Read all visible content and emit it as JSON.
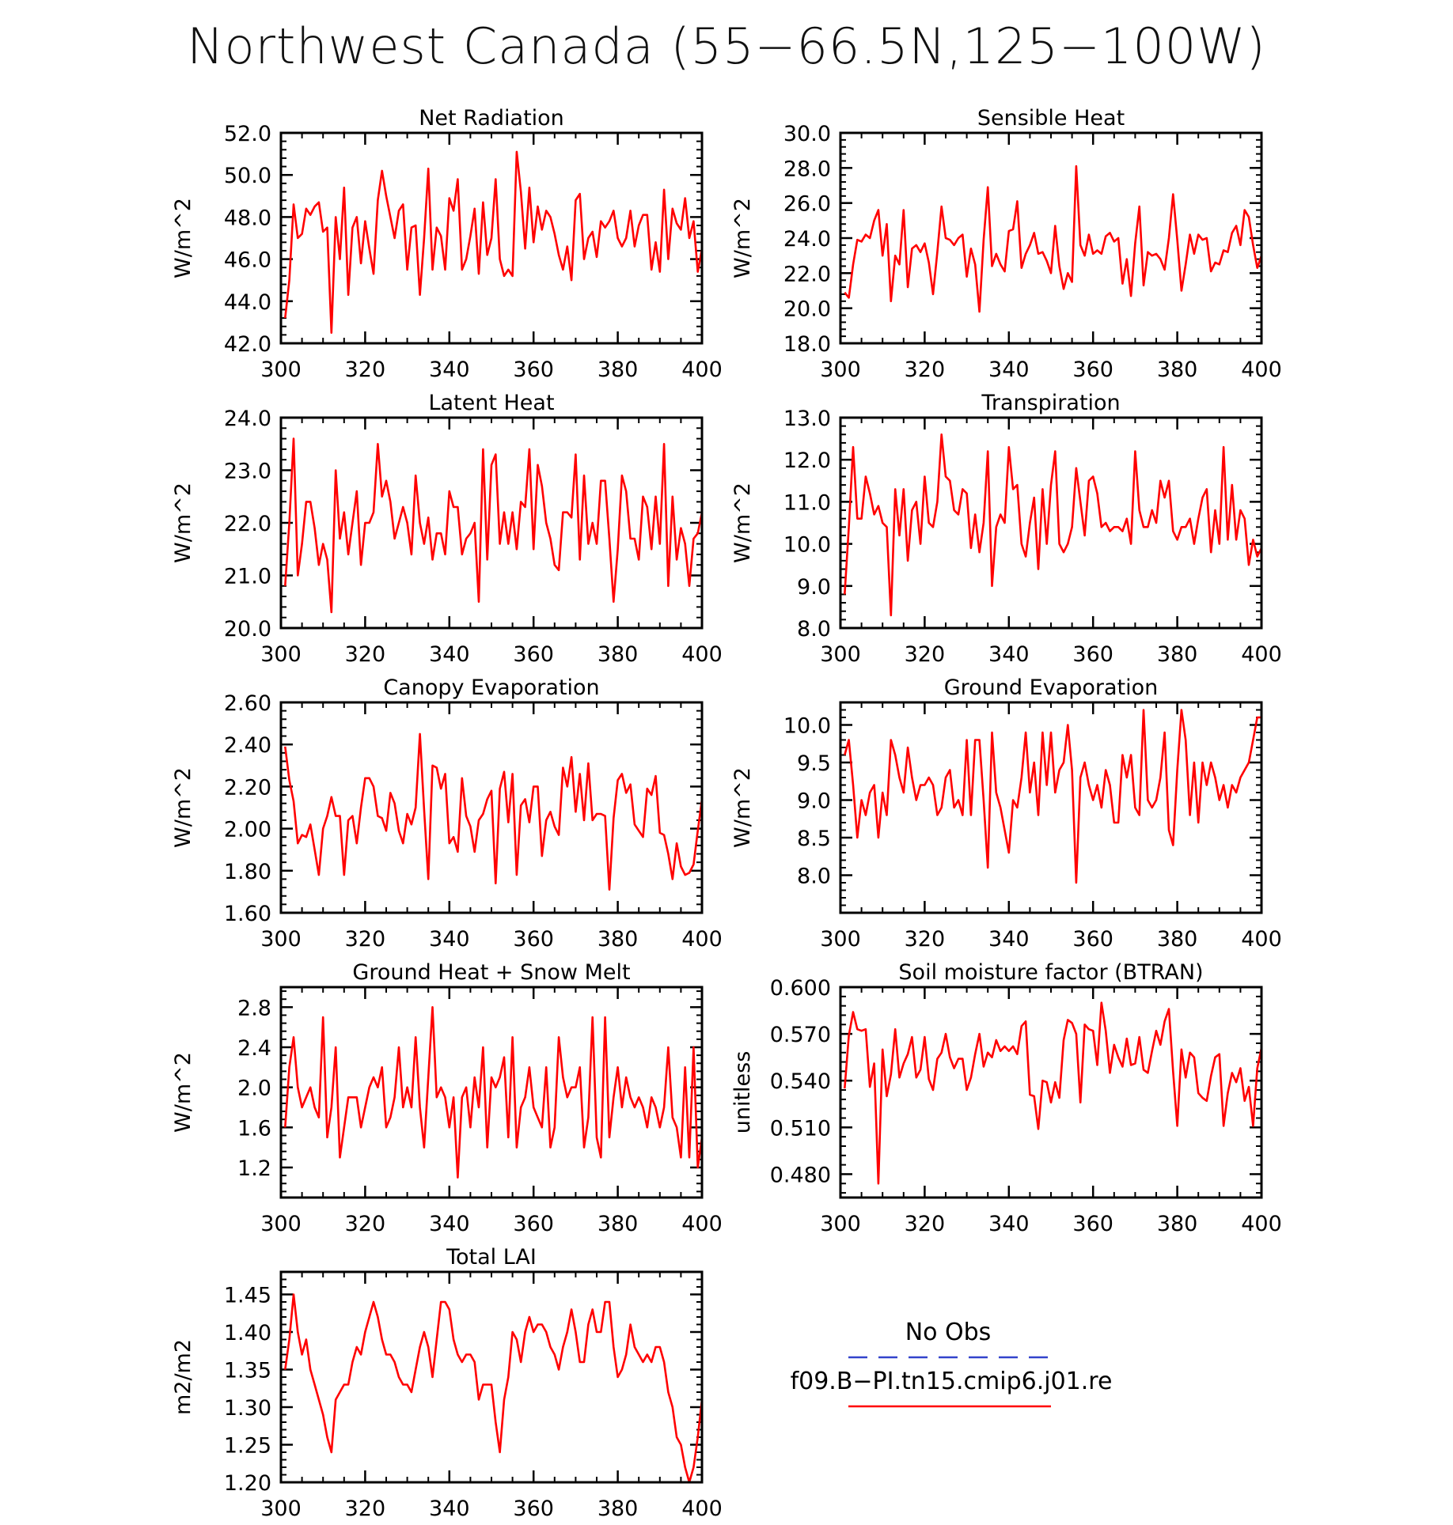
{
  "title": "Northwest Canada (55−66.5N,125−100W)",
  "legend": {
    "obs_label": "No Obs",
    "model_label": "f09.B−PI.tn15.cmip6.j01.re",
    "obs_color": "#3344cc",
    "model_color": "#ff0000"
  },
  "chart_data": [
    {
      "type": "line",
      "title": "Net Radiation",
      "ylabel": "W/m^2",
      "xlim": [
        300,
        400
      ],
      "ylim": [
        42.0,
        52.0
      ],
      "xticks": [
        "300",
        "320",
        "340",
        "360",
        "380",
        "400"
      ],
      "yticks": [
        "42.0",
        "44.0",
        "46.0",
        "48.0",
        "50.0",
        "52.0"
      ],
      "x_start": 301,
      "values": [
        43.2,
        45.0,
        48.6,
        47.0,
        47.2,
        48.4,
        48.1,
        48.5,
        48.7,
        47.3,
        47.5,
        42.5,
        48.0,
        46.0,
        49.4,
        44.3,
        47.5,
        48.0,
        45.8,
        47.8,
        46.5,
        45.3,
        48.8,
        50.2,
        49.0,
        48.0,
        47.0,
        48.3,
        48.6,
        45.5,
        47.5,
        47.6,
        44.3,
        47.0,
        50.3,
        45.5,
        47.5,
        47.1,
        45.5,
        48.9,
        48.3,
        49.8,
        45.5,
        46.0,
        47.1,
        48.4,
        45.3,
        48.7,
        46.2,
        47.0,
        49.8,
        46.0,
        45.2,
        45.5,
        45.2,
        51.1,
        49.2,
        46.5,
        49.4,
        46.8,
        48.5,
        47.4,
        48.3,
        48.0,
        47.2,
        46.2,
        45.5,
        46.6,
        45.0,
        48.8,
        49.1,
        46.0,
        47.0,
        47.3,
        46.1,
        47.8,
        47.5,
        47.8,
        48.3,
        47.0,
        46.6,
        47.0,
        48.3,
        46.6,
        47.6,
        48.1,
        48.1,
        45.5,
        46.8,
        45.4,
        49.3,
        46.0,
        48.4,
        47.7,
        47.4,
        48.9,
        47.0,
        47.8,
        45.4,
        46.5
      ]
    },
    {
      "type": "line",
      "title": "Sensible Heat",
      "ylabel": "W/m^2",
      "xlim": [
        300,
        400
      ],
      "ylim": [
        18.0,
        30.0
      ],
      "xticks": [
        "300",
        "320",
        "340",
        "360",
        "380",
        "400"
      ],
      "yticks": [
        "18.0",
        "20.0",
        "22.0",
        "24.0",
        "26.0",
        "28.0",
        "30.0"
      ],
      "x_start": 301,
      "values": [
        20.9,
        20.6,
        22.5,
        23.9,
        23.8,
        24.2,
        24.0,
        25.0,
        25.6,
        23.0,
        24.8,
        20.4,
        23.0,
        22.5,
        25.6,
        21.2,
        23.4,
        23.6,
        23.2,
        23.7,
        22.6,
        20.8,
        23.2,
        25.8,
        24.0,
        23.9,
        23.6,
        24.0,
        24.2,
        21.8,
        23.4,
        22.5,
        19.8,
        23.9,
        26.9,
        22.4,
        23.1,
        22.5,
        22.1,
        24.4,
        24.5,
        26.1,
        22.3,
        23.1,
        23.6,
        24.3,
        23.1,
        23.2,
        22.7,
        22.0,
        24.7,
        22.4,
        21.1,
        22.0,
        21.5,
        28.1,
        23.6,
        23.0,
        24.2,
        23.1,
        23.3,
        23.1,
        24.1,
        24.3,
        23.8,
        24.0,
        21.4,
        22.8,
        20.7,
        23.7,
        25.8,
        21.3,
        23.2,
        23.0,
        23.1,
        22.8,
        22.2,
        24.0,
        26.5,
        23.9,
        21.0,
        22.5,
        24.2,
        23.1,
        24.2,
        23.9,
        24.0,
        22.1,
        22.6,
        22.5,
        23.3,
        23.2,
        24.3,
        24.7,
        23.6,
        25.6,
        25.2,
        23.6,
        22.3,
        23.0
      ]
    },
    {
      "type": "line",
      "title": "Latent Heat",
      "ylabel": "W/m^2",
      "xlim": [
        300,
        400
      ],
      "ylim": [
        20.0,
        24.0
      ],
      "xticks": [
        "300",
        "320",
        "340",
        "360",
        "380",
        "400"
      ],
      "yticks": [
        "20.0",
        "21.0",
        "22.0",
        "23.0",
        "24.0"
      ],
      "x_start": 301,
      "values": [
        20.8,
        22.0,
        23.6,
        21.0,
        21.6,
        22.4,
        22.4,
        21.9,
        21.2,
        21.6,
        21.3,
        20.3,
        23.0,
        21.7,
        22.2,
        21.4,
        22.0,
        22.6,
        21.2,
        22.0,
        22.0,
        22.2,
        23.5,
        22.5,
        22.8,
        22.4,
        21.7,
        22.0,
        22.3,
        22.0,
        21.4,
        22.9,
        22.0,
        21.6,
        22.1,
        21.3,
        21.8,
        21.8,
        21.4,
        22.6,
        22.3,
        22.3,
        21.4,
        21.7,
        21.8,
        22.0,
        20.5,
        23.4,
        21.3,
        23.1,
        23.3,
        21.6,
        22.2,
        21.6,
        22.2,
        21.5,
        22.4,
        22.3,
        23.4,
        21.5,
        23.1,
        22.7,
        22.0,
        21.7,
        21.2,
        21.1,
        22.2,
        22.2,
        22.1,
        23.3,
        21.3,
        22.9,
        21.6,
        22.0,
        21.6,
        22.8,
        22.8,
        21.7,
        20.5,
        21.5,
        22.9,
        22.6,
        21.7,
        21.7,
        21.3,
        22.5,
        22.3,
        21.5,
        22.5,
        21.6,
        23.5,
        20.8,
        22.5,
        21.3,
        21.9,
        21.6,
        20.8,
        21.7,
        21.8,
        22.2
      ]
    },
    {
      "type": "line",
      "title": "Transpiration",
      "ylabel": "W/m^2",
      "xlim": [
        300,
        400
      ],
      "ylim": [
        8.0,
        13.0
      ],
      "xticks": [
        "300",
        "320",
        "340",
        "360",
        "380",
        "400"
      ],
      "yticks": [
        "8.0",
        "9.0",
        "10.0",
        "11.0",
        "12.0",
        "13.0"
      ],
      "x_start": 301,
      "values": [
        8.8,
        10.4,
        12.3,
        10.6,
        10.6,
        11.6,
        11.2,
        10.7,
        10.9,
        10.5,
        10.4,
        8.3,
        11.3,
        10.2,
        11.3,
        9.6,
        10.8,
        11.0,
        10.0,
        11.6,
        10.5,
        10.4,
        11.0,
        12.6,
        11.6,
        11.5,
        10.8,
        10.7,
        11.3,
        11.2,
        9.9,
        10.7,
        9.8,
        10.5,
        12.2,
        9.0,
        10.4,
        10.7,
        10.5,
        12.3,
        11.3,
        11.4,
        10.0,
        9.7,
        10.5,
        11.1,
        9.4,
        11.3,
        10.0,
        11.4,
        12.2,
        10.0,
        9.8,
        10.0,
        10.4,
        11.8,
        11.0,
        10.2,
        11.5,
        11.6,
        11.2,
        10.4,
        10.5,
        10.3,
        10.4,
        10.4,
        10.3,
        10.6,
        10.0,
        12.2,
        10.8,
        10.4,
        10.4,
        10.8,
        10.5,
        11.5,
        11.1,
        11.5,
        10.3,
        10.1,
        10.4,
        10.4,
        10.6,
        10.0,
        10.6,
        11.1,
        11.3,
        9.8,
        10.8,
        10.0,
        12.3,
        10.1,
        11.4,
        10.1,
        10.8,
        10.6,
        9.5,
        10.1,
        9.7,
        9.9
      ]
    },
    {
      "type": "line",
      "title": "Canopy Evaporation",
      "ylabel": "W/m^2",
      "xlim": [
        300,
        400
      ],
      "ylim": [
        1.6,
        2.6
      ],
      "xticks": [
        "300",
        "320",
        "340",
        "360",
        "380",
        "400"
      ],
      "yticks": [
        "1.60",
        "1.80",
        "2.00",
        "2.20",
        "2.40",
        "2.60"
      ],
      "x_start": 301,
      "values": [
        2.39,
        2.23,
        2.13,
        1.93,
        1.97,
        1.96,
        2.02,
        1.9,
        1.78,
        2.0,
        2.06,
        2.15,
        2.06,
        2.06,
        1.78,
        2.04,
        2.06,
        1.93,
        2.1,
        2.24,
        2.24,
        2.2,
        2.06,
        2.05,
        1.99,
        2.17,
        2.12,
        1.99,
        1.93,
        2.07,
        2.02,
        2.1,
        2.45,
        2.09,
        1.76,
        2.3,
        2.29,
        2.19,
        2.26,
        1.93,
        1.96,
        1.89,
        2.24,
        2.06,
        2.01,
        1.89,
        2.04,
        2.07,
        2.14,
        2.18,
        1.74,
        2.19,
        2.27,
        2.03,
        2.26,
        1.78,
        2.11,
        2.14,
        2.03,
        2.2,
        2.2,
        1.87,
        2.04,
        2.08,
        2.01,
        1.97,
        2.29,
        2.2,
        2.34,
        2.08,
        2.26,
        2.04,
        2.31,
        2.04,
        2.07,
        2.07,
        2.06,
        1.71,
        2.05,
        2.23,
        2.26,
        2.17,
        2.21,
        2.02,
        1.99,
        1.96,
        2.19,
        2.16,
        2.25,
        1.98,
        1.97,
        1.88,
        1.76,
        1.93,
        1.82,
        1.78,
        1.79,
        1.83,
        1.99,
        2.14
      ]
    },
    {
      "type": "line",
      "title": "Ground Evaporation",
      "ylabel": "W/m^2",
      "xlim": [
        300,
        400
      ],
      "ylim": [
        7.5,
        10.3
      ],
      "xticks": [
        "300",
        "320",
        "340",
        "360",
        "380",
        "400"
      ],
      "yticks": [
        "8.0",
        "8.5",
        "9.0",
        "9.5",
        "10.0"
      ],
      "x_start": 301,
      "values": [
        9.6,
        9.8,
        9.2,
        8.5,
        9.0,
        8.8,
        9.1,
        9.2,
        8.5,
        9.1,
        8.8,
        9.8,
        9.6,
        9.3,
        9.1,
        9.7,
        9.3,
        9.0,
        9.2,
        9.2,
        9.3,
        9.2,
        8.8,
        8.9,
        9.3,
        9.4,
        8.9,
        9.0,
        8.8,
        9.8,
        8.8,
        9.8,
        9.8,
        9.0,
        8.1,
        9.9,
        9.1,
        8.9,
        8.6,
        8.3,
        9.0,
        8.9,
        9.3,
        9.9,
        9.1,
        9.5,
        8.8,
        9.9,
        9.2,
        9.9,
        9.1,
        9.4,
        9.5,
        10.0,
        9.4,
        7.9,
        9.3,
        9.5,
        9.2,
        9.0,
        9.2,
        8.9,
        9.4,
        9.2,
        8.7,
        8.7,
        9.6,
        9.3,
        9.6,
        8.9,
        8.8,
        10.2,
        9.0,
        8.9,
        9.0,
        9.3,
        9.9,
        8.6,
        8.4,
        9.4,
        10.2,
        9.8,
        8.8,
        9.5,
        8.7,
        9.5,
        9.2,
        9.5,
        9.3,
        9.0,
        9.2,
        8.9,
        9.2,
        9.1,
        9.3,
        9.4,
        9.5,
        9.8,
        10.1,
        10.1
      ]
    },
    {
      "type": "line",
      "title": "Ground Heat + Snow Melt",
      "ylabel": "W/m^2",
      "xlim": [
        300,
        400
      ],
      "ylim": [
        0.9,
        3.0
      ],
      "xticks": [
        "300",
        "320",
        "340",
        "360",
        "380",
        "400"
      ],
      "yticks": [
        "1.2",
        "1.6",
        "2.0",
        "2.4",
        "2.8"
      ],
      "x_start": 301,
      "values": [
        1.6,
        2.2,
        2.5,
        2.0,
        1.8,
        1.9,
        2.0,
        1.8,
        1.7,
        2.7,
        1.5,
        1.8,
        2.4,
        1.3,
        1.6,
        1.9,
        1.9,
        1.9,
        1.6,
        1.8,
        2.0,
        2.1,
        2.0,
        2.2,
        1.6,
        1.7,
        1.9,
        2.4,
        1.8,
        2.0,
        1.8,
        2.5,
        1.8,
        1.4,
        2.1,
        2.8,
        1.9,
        2.0,
        1.9,
        1.6,
        1.9,
        1.1,
        1.9,
        2.0,
        1.6,
        2.1,
        1.8,
        2.4,
        1.4,
        2.1,
        2.0,
        2.1,
        2.3,
        1.5,
        2.5,
        1.4,
        1.8,
        1.9,
        2.2,
        1.8,
        1.7,
        1.6,
        2.2,
        1.4,
        1.6,
        2.5,
        2.1,
        1.9,
        2.0,
        2.0,
        2.2,
        1.4,
        1.7,
        2.7,
        1.5,
        1.3,
        2.7,
        1.5,
        1.9,
        2.2,
        1.8,
        2.1,
        1.9,
        1.8,
        1.9,
        1.8,
        1.6,
        1.9,
        1.8,
        1.6,
        1.8,
        2.4,
        1.7,
        1.6,
        1.3,
        2.2,
        1.3,
        2.4,
        1.2,
        1.5
      ]
    },
    {
      "type": "line",
      "title": "Soil moisture factor (BTRAN)",
      "ylabel": "unitless",
      "xlim": [
        300,
        400
      ],
      "ylim": [
        0.465,
        0.6
      ],
      "xticks": [
        "300",
        "320",
        "340",
        "360",
        "380",
        "400"
      ],
      "yticks": [
        "0.480",
        "0.510",
        "0.540",
        "0.570",
        "0.600"
      ],
      "x_start": 301,
      "values": [
        0.535,
        0.569,
        0.584,
        0.573,
        0.572,
        0.573,
        0.536,
        0.551,
        0.474,
        0.56,
        0.53,
        0.544,
        0.573,
        0.542,
        0.551,
        0.557,
        0.568,
        0.542,
        0.547,
        0.568,
        0.541,
        0.534,
        0.554,
        0.558,
        0.57,
        0.555,
        0.548,
        0.554,
        0.554,
        0.534,
        0.542,
        0.557,
        0.57,
        0.549,
        0.558,
        0.555,
        0.566,
        0.559,
        0.562,
        0.559,
        0.562,
        0.557,
        0.575,
        0.578,
        0.531,
        0.53,
        0.509,
        0.54,
        0.539,
        0.526,
        0.539,
        0.529,
        0.566,
        0.579,
        0.577,
        0.57,
        0.526,
        0.576,
        0.573,
        0.572,
        0.55,
        0.59,
        0.572,
        0.545,
        0.563,
        0.555,
        0.549,
        0.567,
        0.55,
        0.551,
        0.568,
        0.547,
        0.545,
        0.559,
        0.572,
        0.563,
        0.578,
        0.586,
        0.546,
        0.511,
        0.56,
        0.542,
        0.558,
        0.555,
        0.532,
        0.529,
        0.527,
        0.543,
        0.555,
        0.557,
        0.511,
        0.532,
        0.545,
        0.539,
        0.548,
        0.527,
        0.536,
        0.511,
        0.548,
        0.561
      ]
    },
    {
      "type": "line",
      "title": "Total LAI",
      "ylabel": "m2/m2",
      "xlim": [
        300,
        400
      ],
      "ylim": [
        1.2,
        1.48
      ],
      "xticks": [
        "300",
        "320",
        "340",
        "360",
        "380",
        "400"
      ],
      "yticks": [
        "1.20",
        "1.25",
        "1.30",
        "1.35",
        "1.40",
        "1.45"
      ],
      "x_start": 301,
      "values": [
        1.35,
        1.39,
        1.45,
        1.4,
        1.37,
        1.39,
        1.35,
        1.33,
        1.31,
        1.29,
        1.26,
        1.24,
        1.31,
        1.32,
        1.33,
        1.33,
        1.36,
        1.38,
        1.37,
        1.4,
        1.42,
        1.44,
        1.42,
        1.39,
        1.37,
        1.37,
        1.36,
        1.34,
        1.33,
        1.33,
        1.32,
        1.35,
        1.38,
        1.4,
        1.38,
        1.34,
        1.39,
        1.44,
        1.44,
        1.43,
        1.39,
        1.37,
        1.36,
        1.37,
        1.37,
        1.36,
        1.31,
        1.33,
        1.33,
        1.33,
        1.28,
        1.24,
        1.31,
        1.34,
        1.4,
        1.39,
        1.36,
        1.4,
        1.42,
        1.4,
        1.41,
        1.41,
        1.4,
        1.38,
        1.37,
        1.35,
        1.38,
        1.4,
        1.43,
        1.4,
        1.36,
        1.36,
        1.41,
        1.43,
        1.4,
        1.4,
        1.44,
        1.44,
        1.38,
        1.34,
        1.35,
        1.37,
        1.41,
        1.38,
        1.37,
        1.36,
        1.37,
        1.36,
        1.38,
        1.38,
        1.36,
        1.32,
        1.3,
        1.26,
        1.25,
        1.22,
        1.2,
        1.22,
        1.26,
        1.31
      ]
    }
  ]
}
